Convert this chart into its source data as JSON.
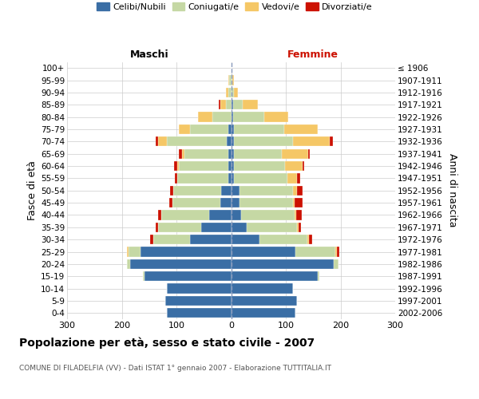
{
  "age_groups": [
    "0-4",
    "5-9",
    "10-14",
    "15-19",
    "20-24",
    "25-29",
    "30-34",
    "35-39",
    "40-44",
    "45-49",
    "50-54",
    "55-59",
    "60-64",
    "65-69",
    "70-74",
    "75-79",
    "80-84",
    "85-89",
    "90-94",
    "95-99",
    "100+"
  ],
  "birth_years": [
    "2002-2006",
    "1997-2001",
    "1992-1996",
    "1987-1991",
    "1982-1986",
    "1977-1981",
    "1972-1976",
    "1967-1971",
    "1962-1966",
    "1957-1961",
    "1952-1956",
    "1947-1951",
    "1942-1946",
    "1937-1941",
    "1932-1936",
    "1927-1931",
    "1922-1926",
    "1917-1921",
    "1912-1916",
    "1907-1911",
    "≤ 1906"
  ],
  "male_celibi": [
    118,
    120,
    118,
    158,
    185,
    165,
    75,
    55,
    40,
    20,
    18,
    5,
    5,
    5,
    8,
    5,
    0,
    0,
    0,
    0,
    0
  ],
  "male_coniugati": [
    0,
    0,
    0,
    3,
    5,
    22,
    68,
    78,
    88,
    88,
    88,
    93,
    90,
    80,
    110,
    70,
    35,
    10,
    5,
    3,
    0
  ],
  "male_vedovi": [
    0,
    0,
    0,
    0,
    0,
    4,
    0,
    0,
    0,
    0,
    0,
    0,
    4,
    5,
    15,
    20,
    25,
    10,
    5,
    2,
    0
  ],
  "male_divorziati": [
    0,
    0,
    0,
    0,
    0,
    0,
    5,
    5,
    5,
    5,
    5,
    5,
    5,
    5,
    5,
    0,
    0,
    2,
    0,
    0,
    0
  ],
  "female_nubili": [
    118,
    120,
    113,
    158,
    188,
    118,
    52,
    28,
    18,
    15,
    15,
    5,
    5,
    5,
    5,
    5,
    3,
    3,
    0,
    0,
    0
  ],
  "female_coniugate": [
    0,
    0,
    0,
    3,
    8,
    72,
    88,
    92,
    98,
    98,
    98,
    98,
    93,
    88,
    108,
    92,
    58,
    18,
    5,
    2,
    0
  ],
  "female_vedove": [
    0,
    0,
    0,
    0,
    0,
    3,
    3,
    3,
    3,
    3,
    8,
    18,
    33,
    48,
    68,
    62,
    43,
    28,
    8,
    3,
    0
  ],
  "female_divorziate": [
    0,
    0,
    0,
    0,
    0,
    5,
    5,
    5,
    10,
    15,
    10,
    5,
    3,
    3,
    5,
    0,
    0,
    0,
    0,
    0,
    0
  ],
  "color_celibi": "#3a6ea5",
  "color_coniugati": "#c5d8a4",
  "color_vedovi": "#f5c766",
  "color_divorziati": "#cc1100",
  "xlim": 300,
  "title": "Popolazione per età, sesso e stato civile - 2007",
  "subtitle": "COMUNE DI FILADELFIA (VV) - Dati ISTAT 1° gennaio 2007 - Elaborazione TUTTITALIA.IT",
  "ylabel_left": "Fasce di età",
  "ylabel_right": "Anni di nascita",
  "label_maschi": "Maschi",
  "label_femmine": "Femmine",
  "legend_labels": [
    "Celibi/Nubili",
    "Coniugati/e",
    "Vedovi/e",
    "Divorziati/e"
  ]
}
